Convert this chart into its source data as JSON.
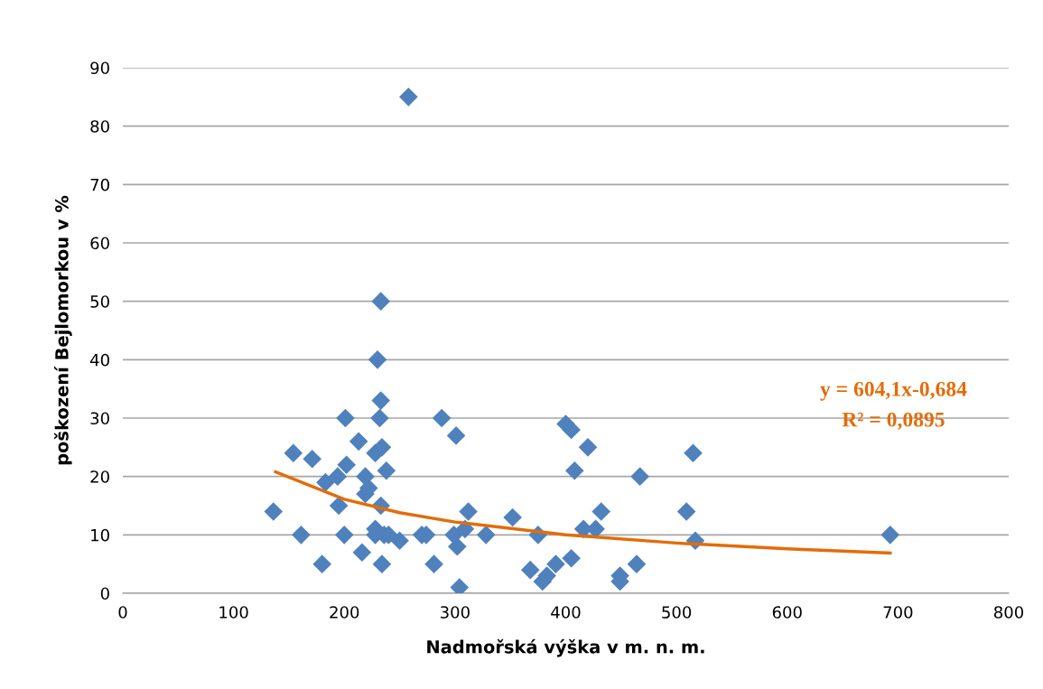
{
  "chart_data": {
    "type": "scatter",
    "xlabel": "Nadmořská výška v m. n. m.",
    "ylabel": "poškození Bejlomorkou v %",
    "xlim": [
      0,
      800
    ],
    "xticks": [
      0,
      100,
      200,
      300,
      400,
      500,
      600,
      700,
      800
    ],
    "ylim": [
      0,
      90
    ],
    "yticks": [
      0,
      10,
      20,
      30,
      40,
      50,
      60,
      70,
      80,
      90
    ],
    "grid": "y",
    "marker": "diamond",
    "legend": false,
    "annotations": [
      "y = 604,1x-0,684",
      "R² = 0,0895"
    ],
    "series": [
      {
        "color": "#4f81bd",
        "x": [
          136,
          154,
          161,
          171,
          180,
          183,
          194,
          195,
          200,
          201,
          202,
          213,
          216,
          219,
          219,
          222,
          228,
          228,
          230,
          232,
          233,
          233,
          234,
          233,
          234,
          228,
          236,
          238,
          240,
          250,
          258,
          270,
          274,
          281,
          288,
          299,
          301,
          302,
          304,
          309,
          312,
          328,
          352,
          368,
          375,
          379,
          383,
          391,
          400,
          405,
          405,
          408,
          416,
          420,
          427,
          432,
          449,
          449,
          464,
          467,
          509,
          515,
          517,
          693
        ],
        "values": [
          14,
          24,
          10,
          23,
          5,
          19,
          20,
          15,
          10,
          30,
          22,
          26,
          7,
          20,
          17,
          18,
          11,
          24,
          40,
          30,
          33,
          50,
          25,
          15,
          5,
          10,
          10,
          21,
          10,
          9,
          85,
          10,
          10,
          5,
          30,
          10,
          27,
          8,
          1,
          11,
          14,
          10,
          13,
          4,
          10,
          2,
          3,
          5,
          29,
          28,
          6,
          21,
          11,
          25,
          11,
          14,
          3,
          2,
          5,
          20,
          14,
          24,
          9,
          10
        ]
      },
      {
        "type": "line",
        "color": "#e36c09",
        "marker": "none",
        "x": [
          138,
          200,
          250,
          300,
          400,
          500,
          600,
          693
        ],
        "values": [
          20.8,
          16.1,
          13.8,
          12.2,
          10.0,
          8.6,
          7.6,
          6.9
        ]
      }
    ]
  }
}
